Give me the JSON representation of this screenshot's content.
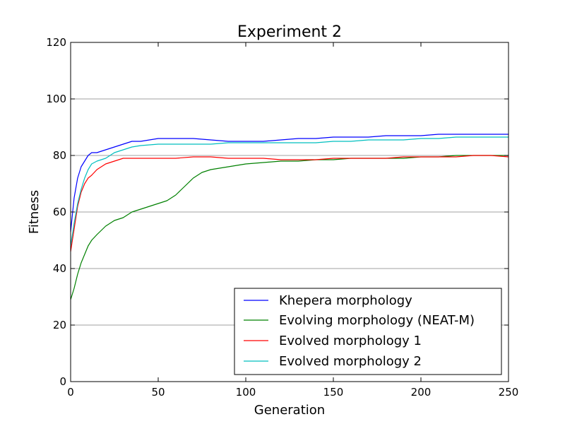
{
  "chart_data": {
    "type": "line",
    "title": "Experiment 2",
    "xlabel": "Generation",
    "ylabel": "Fitness",
    "xlim": [
      0,
      250
    ],
    "ylim": [
      0,
      120
    ],
    "xticks": [
      0,
      50,
      100,
      150,
      200,
      250
    ],
    "yticks": [
      0,
      20,
      40,
      60,
      80,
      100,
      120
    ],
    "grid": "horizontal",
    "legend_position": "lower-right",
    "series": [
      {
        "name": "Khepera morphology",
        "color": "#0000ff",
        "points": [
          [
            0,
            53
          ],
          [
            2,
            65
          ],
          [
            4,
            72
          ],
          [
            6,
            76
          ],
          [
            8,
            78
          ],
          [
            10,
            80
          ],
          [
            12,
            81
          ],
          [
            15,
            81
          ],
          [
            20,
            82
          ],
          [
            25,
            83
          ],
          [
            30,
            84
          ],
          [
            35,
            85
          ],
          [
            40,
            85
          ],
          [
            50,
            86
          ],
          [
            60,
            86
          ],
          [
            70,
            86
          ],
          [
            80,
            85.5
          ],
          [
            90,
            85
          ],
          [
            100,
            85
          ],
          [
            110,
            85
          ],
          [
            120,
            85.5
          ],
          [
            130,
            86
          ],
          [
            140,
            86
          ],
          [
            150,
            86.5
          ],
          [
            160,
            86.5
          ],
          [
            170,
            86.5
          ],
          [
            180,
            87
          ],
          [
            190,
            87
          ],
          [
            200,
            87
          ],
          [
            210,
            87.5
          ],
          [
            220,
            87.5
          ],
          [
            230,
            87.5
          ],
          [
            240,
            87.5
          ],
          [
            250,
            87.5
          ]
        ]
      },
      {
        "name": "Evolving morphology (NEAT-M)",
        "color": "#008000",
        "points": [
          [
            0,
            29
          ],
          [
            2,
            33
          ],
          [
            4,
            38
          ],
          [
            6,
            42
          ],
          [
            8,
            45
          ],
          [
            10,
            48
          ],
          [
            12,
            50
          ],
          [
            15,
            52
          ],
          [
            20,
            55
          ],
          [
            25,
            57
          ],
          [
            30,
            58
          ],
          [
            35,
            60
          ],
          [
            40,
            61
          ],
          [
            45,
            62
          ],
          [
            50,
            63
          ],
          [
            55,
            64
          ],
          [
            60,
            66
          ],
          [
            65,
            69
          ],
          [
            70,
            72
          ],
          [
            75,
            74
          ],
          [
            80,
            75
          ],
          [
            85,
            75.5
          ],
          [
            90,
            76
          ],
          [
            95,
            76.5
          ],
          [
            100,
            77
          ],
          [
            110,
            77.5
          ],
          [
            120,
            78
          ],
          [
            130,
            78
          ],
          [
            140,
            78.5
          ],
          [
            150,
            78.5
          ],
          [
            160,
            79
          ],
          [
            170,
            79
          ],
          [
            180,
            79
          ],
          [
            190,
            79
          ],
          [
            200,
            79.5
          ],
          [
            210,
            79.5
          ],
          [
            220,
            80
          ],
          [
            230,
            80
          ],
          [
            240,
            80
          ],
          [
            250,
            80
          ]
        ]
      },
      {
        "name": "Evolved morphology 1",
        "color": "#ff0000",
        "points": [
          [
            0,
            46
          ],
          [
            2,
            54
          ],
          [
            4,
            62
          ],
          [
            6,
            67
          ],
          [
            8,
            70
          ],
          [
            10,
            72
          ],
          [
            12,
            73
          ],
          [
            15,
            75
          ],
          [
            20,
            77
          ],
          [
            25,
            78
          ],
          [
            30,
            79
          ],
          [
            40,
            79
          ],
          [
            50,
            79
          ],
          [
            60,
            79
          ],
          [
            70,
            79.5
          ],
          [
            80,
            79.5
          ],
          [
            90,
            79
          ],
          [
            100,
            79
          ],
          [
            110,
            79
          ],
          [
            120,
            78.5
          ],
          [
            130,
            78.5
          ],
          [
            140,
            78.5
          ],
          [
            150,
            79
          ],
          [
            160,
            79
          ],
          [
            170,
            79
          ],
          [
            180,
            79
          ],
          [
            190,
            79.5
          ],
          [
            200,
            79.5
          ],
          [
            210,
            79.5
          ],
          [
            220,
            79.5
          ],
          [
            230,
            80
          ],
          [
            240,
            80
          ],
          [
            250,
            79.5
          ]
        ]
      },
      {
        "name": "Evolved morphology 2",
        "color": "#00bfbf",
        "points": [
          [
            0,
            48
          ],
          [
            2,
            56
          ],
          [
            4,
            63
          ],
          [
            6,
            68
          ],
          [
            8,
            72
          ],
          [
            10,
            75
          ],
          [
            12,
            77
          ],
          [
            15,
            78
          ],
          [
            20,
            79
          ],
          [
            25,
            81
          ],
          [
            30,
            82
          ],
          [
            35,
            83
          ],
          [
            40,
            83.5
          ],
          [
            50,
            84
          ],
          [
            60,
            84
          ],
          [
            70,
            84
          ],
          [
            80,
            84
          ],
          [
            90,
            84.5
          ],
          [
            100,
            84.5
          ],
          [
            110,
            84.5
          ],
          [
            120,
            84.5
          ],
          [
            130,
            84.5
          ],
          [
            140,
            84.5
          ],
          [
            150,
            85
          ],
          [
            160,
            85
          ],
          [
            170,
            85.5
          ],
          [
            180,
            85.5
          ],
          [
            190,
            85.5
          ],
          [
            200,
            86
          ],
          [
            210,
            86
          ],
          [
            220,
            86.5
          ],
          [
            230,
            86.5
          ],
          [
            240,
            86.5
          ],
          [
            250,
            86.5
          ]
        ]
      }
    ]
  }
}
